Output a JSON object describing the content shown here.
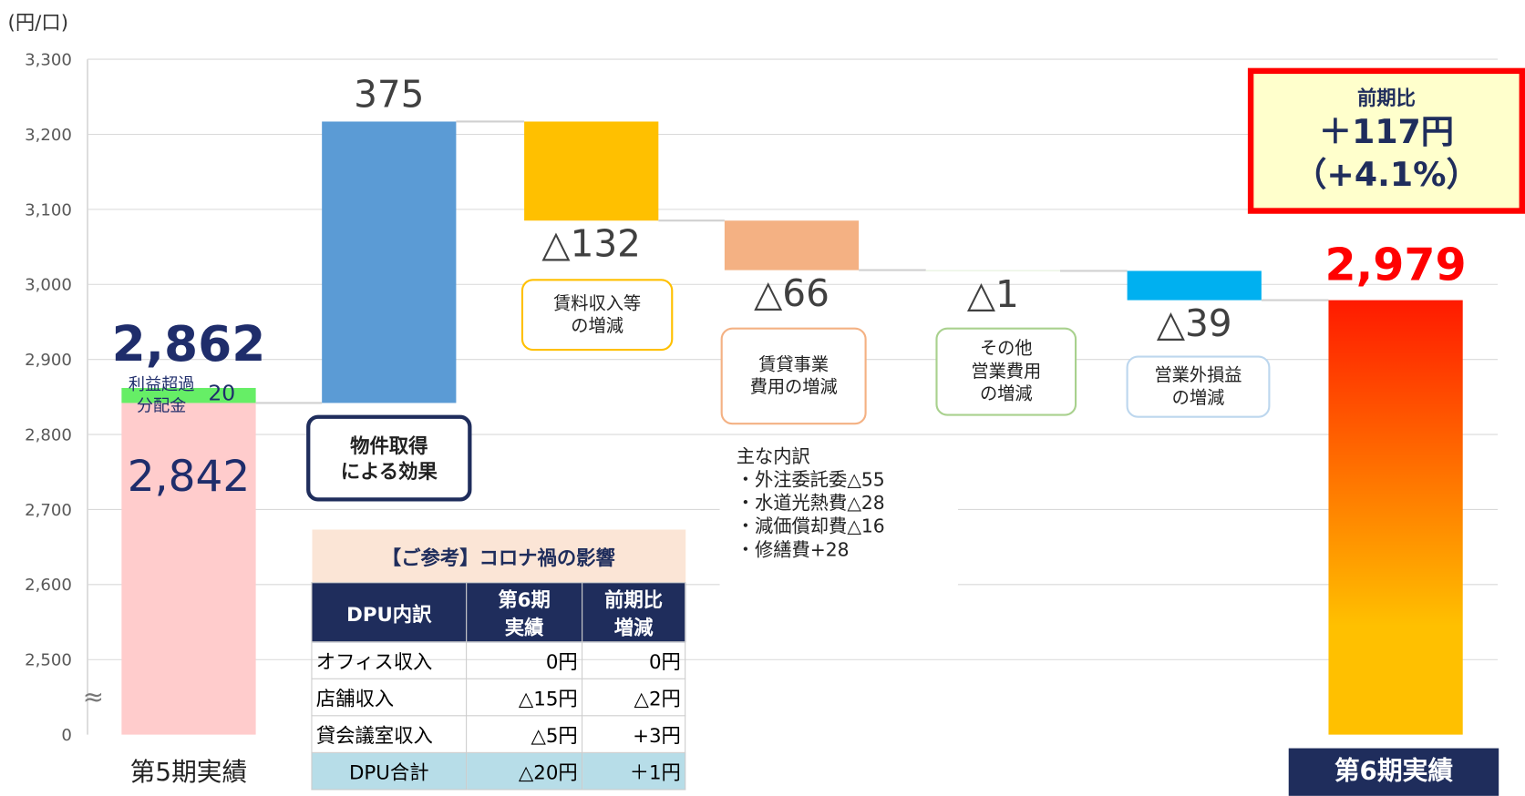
{
  "chart_data": {
    "type": "waterfall",
    "unit_label": "(円/口)",
    "axis_break": "≈",
    "categories": [
      "第5期実績",
      "物件取得\nによる効果",
      "賃料収入等\nの増減",
      "賃貸事業\n費用の増減",
      "その他\n営業費用\nの増減",
      "営業外損益\nの増減",
      "第6期実績"
    ],
    "kinds": [
      "total",
      "delta",
      "delta",
      "delta",
      "delta",
      "delta",
      "total"
    ],
    "values": [
      2862,
      375,
      -132,
      -66,
      -1,
      -39,
      2979
    ],
    "value_labels": [
      "2,862",
      "375",
      "△132",
      "△66",
      "△1",
      "△39",
      "2,979"
    ],
    "colors": [
      "#ffcccc",
      "#5b9bd5",
      "#ffc000",
      "#f4b183",
      "#e2f0d9",
      "#00b0f0",
      "#ff1a00"
    ],
    "final_gradient": [
      "#ff1a00",
      "#ffc000"
    ],
    "first_bar_segments": [
      {
        "value": 2842,
        "label": "2,842",
        "color": "#ffcccc"
      },
      {
        "name": "利益超過\n分配金",
        "value": 20,
        "label": "20",
        "color": "#66ee66"
      }
    ],
    "ylim": [
      0,
      3300
    ],
    "yticks": [
      {
        "value": 0,
        "label": "0"
      },
      {
        "value": 2500,
        "label": "2,500"
      },
      {
        "value": 2600,
        "label": "2,600"
      },
      {
        "value": 2700,
        "label": "2,700"
      },
      {
        "value": 2800,
        "label": "2,800"
      },
      {
        "value": 2900,
        "label": "2,900"
      },
      {
        "value": 3000,
        "label": "3,000"
      },
      {
        "value": 3100,
        "label": "3,100"
      },
      {
        "value": 3200,
        "label": "3,200"
      },
      {
        "value": 3300,
        "label": "3,300"
      }
    ],
    "grid": true
  },
  "callout": {
    "lines": [
      "前期比",
      "＋117円",
      "（+4.1%）"
    ]
  },
  "note": {
    "lines": [
      "主な内訳",
      "・外注委託委△55",
      "・水道光熱費△28",
      "・減価償却費△16",
      "・修繕費+28"
    ]
  },
  "table": {
    "title": "【ご参考】コロナ禍の影響",
    "header": [
      "DPU内訳",
      "第6期\n実績",
      "前期比\n増減"
    ],
    "rows": [
      [
        "オフィス収入",
        "0円",
        "0円"
      ],
      [
        "店舗収入",
        "△15円",
        "△2円"
      ],
      [
        "貸会議室収入",
        "△5円",
        "+3円"
      ]
    ],
    "total": [
      "DPU合計",
      "△20円",
      "＋1円"
    ]
  }
}
